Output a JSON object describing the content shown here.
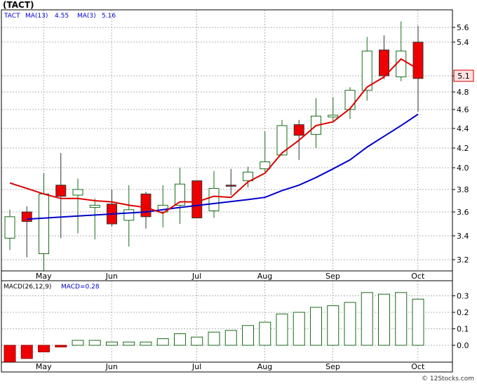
{
  "header": {
    "ticker": "(TACT)",
    "legend_ticker": "TACT",
    "ma13_label": "MA(13)",
    "ma13_value": "4.55",
    "ma3_label": "MA(3)",
    "ma3_value": "5.16"
  },
  "macd_header": {
    "label": "MACD(26,12,9)",
    "value_label": "MACD=0.28"
  },
  "watermark": "© 12Stocks.com",
  "colors": {
    "up": "#1a6b1a",
    "down_fill": "#ee0000",
    "ma3": "#dd0000",
    "ma13": "#0000cc",
    "grid": "#b3b3b3",
    "border": "#000000",
    "label_blue": "#0000cc",
    "price_tag_bg": "#ffe0e0"
  },
  "chart_data": [
    {
      "type": "candlestick",
      "title": "(TACT)",
      "months": [
        "May",
        "Jun",
        "Jul",
        "Aug",
        "Sep",
        "Oct"
      ],
      "month_index": [
        1,
        5,
        10,
        14,
        18,
        23
      ],
      "y_ticks": [
        3.2,
        3.4,
        3.6,
        3.8,
        4.0,
        4.2,
        4.4,
        4.6,
        4.8,
        5.1,
        5.4,
        5.6
      ],
      "y_tick_labels": [
        "3.2",
        "3.4",
        "3.6",
        "3.8",
        "4.0",
        "4.2",
        "4.4",
        "4.6",
        "4.8",
        "5.1",
        "5.4",
        "5.6"
      ],
      "current_price_label": "5.1",
      "current_price": 5.1,
      "ohlc": [
        {
          "o": 3.38,
          "h": 3.62,
          "l": 3.28,
          "c": 3.56
        },
        {
          "o": 3.6,
          "h": 3.65,
          "l": 3.22,
          "c": 3.52
        },
        {
          "o": 3.25,
          "h": 3.95,
          "l": 3.1,
          "c": 3.76
        },
        {
          "o": 3.84,
          "h": 4.15,
          "l": 3.38,
          "c": 3.74
        },
        {
          "o": 3.75,
          "h": 3.9,
          "l": 3.42,
          "c": 3.8
        },
        {
          "o": 3.64,
          "h": 3.72,
          "l": 3.37,
          "c": 3.66
        },
        {
          "o": 3.67,
          "h": 3.8,
          "l": 3.48,
          "c": 3.5
        },
        {
          "o": 3.53,
          "h": 3.84,
          "l": 3.31,
          "c": 3.62
        },
        {
          "o": 3.76,
          "h": 3.78,
          "l": 3.46,
          "c": 3.56
        },
        {
          "o": 3.6,
          "h": 3.84,
          "l": 3.47,
          "c": 3.66
        },
        {
          "o": 3.66,
          "h": 4.0,
          "l": 3.5,
          "c": 3.85
        },
        {
          "o": 3.88,
          "h": 3.88,
          "l": 3.55,
          "c": 3.55
        },
        {
          "o": 3.61,
          "h": 3.97,
          "l": 3.55,
          "c": 3.81
        },
        {
          "o": 3.84,
          "h": 3.99,
          "l": 3.75,
          "c": 3.83
        },
        {
          "o": 3.88,
          "h": 4.01,
          "l": 3.82,
          "c": 3.96
        },
        {
          "o": 3.99,
          "h": 4.37,
          "l": 3.96,
          "c": 4.06
        },
        {
          "o": 4.13,
          "h": 4.49,
          "l": 4.12,
          "c": 4.43
        },
        {
          "o": 4.44,
          "h": 4.49,
          "l": 4.08,
          "c": 4.33
        },
        {
          "o": 4.34,
          "h": 4.73,
          "l": 4.2,
          "c": 4.53
        },
        {
          "o": 4.52,
          "h": 4.74,
          "l": 4.48,
          "c": 4.54
        },
        {
          "o": 4.6,
          "h": 4.89,
          "l": 4.5,
          "c": 4.83
        },
        {
          "o": 4.83,
          "h": 5.47,
          "l": 4.7,
          "c": 5.32
        },
        {
          "o": 5.33,
          "h": 5.49,
          "l": 5.04,
          "c": 5.1
        },
        {
          "o": 5.08,
          "h": 5.68,
          "l": 5.0,
          "c": 5.32
        },
        {
          "o": 5.4,
          "h": 5.62,
          "l": 4.58,
          "c": 5.05
        }
      ],
      "ma3": [
        3.86,
        3.81,
        3.76,
        3.72,
        3.72,
        3.7,
        3.69,
        3.66,
        3.64,
        3.59,
        3.69,
        3.69,
        3.74,
        3.73,
        3.87,
        3.95,
        4.15,
        4.28,
        4.43,
        4.47,
        4.61,
        4.89,
        5.08,
        5.25,
        5.16
      ],
      "ma13": [
        null,
        3.54,
        null,
        null,
        null,
        null,
        null,
        null,
        3.6,
        null,
        3.64,
        null,
        null,
        null,
        3.71,
        3.73,
        3.79,
        3.84,
        3.91,
        3.99,
        4.08,
        4.21,
        4.32,
        4.43,
        4.55
      ]
    },
    {
      "type": "bar",
      "title": "MACD(26,12,9)",
      "y_ticks": [
        0.0,
        0.1,
        0.2,
        0.3
      ],
      "y_tick_labels": [
        "0.0",
        "0.1",
        "0.2",
        "0.3"
      ],
      "values": [
        -0.1,
        -0.08,
        -0.04,
        -0.01,
        0.03,
        0.03,
        0.02,
        0.02,
        0.02,
        0.04,
        0.07,
        0.05,
        0.08,
        0.09,
        0.12,
        0.14,
        0.19,
        0.2,
        0.23,
        0.24,
        0.26,
        0.32,
        0.31,
        0.32,
        0.28
      ]
    }
  ]
}
